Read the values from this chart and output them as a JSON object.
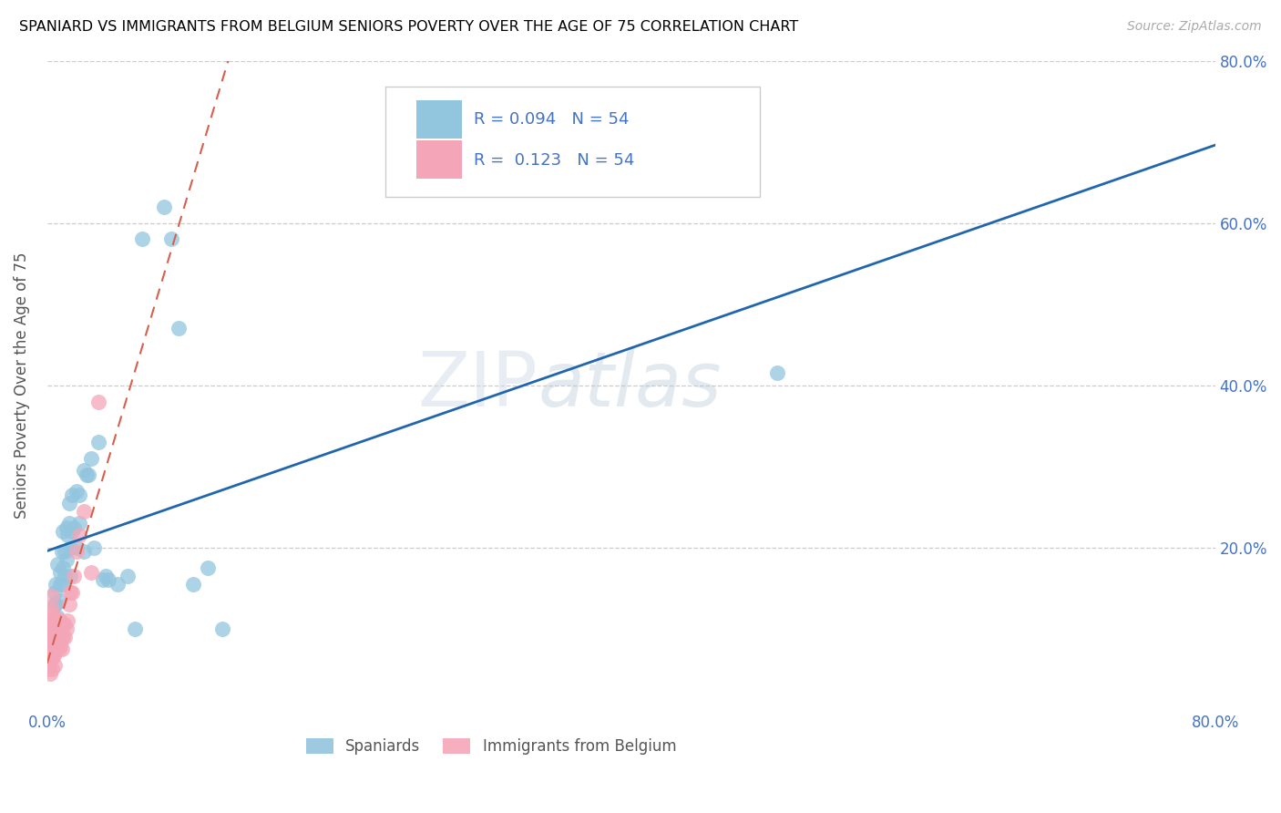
{
  "title": "SPANIARD VS IMMIGRANTS FROM BELGIUM SENIORS POVERTY OVER THE AGE OF 75 CORRELATION CHART",
  "source": "Source: ZipAtlas.com",
  "ylabel": "Seniors Poverty Over the Age of 75",
  "xlim": [
    0,
    0.8
  ],
  "ylim": [
    0,
    0.8
  ],
  "R_blue": 0.094,
  "N_blue": 54,
  "R_pink": 0.123,
  "N_pink": 54,
  "blue_color": "#92c5de",
  "pink_color": "#f4a6b8",
  "trend_blue_color": "#2166ac",
  "trend_pink_color": "#d6604d",
  "watermark_zip": "ZIP",
  "watermark_atlas": "atlas",
  "figsize": [
    14.06,
    8.92
  ],
  "dpi": 100,
  "spaniards_x": [
    0.005,
    0.005,
    0.005,
    0.006,
    0.006,
    0.006,
    0.007,
    0.007,
    0.007,
    0.008,
    0.008,
    0.009,
    0.009,
    0.01,
    0.01,
    0.011,
    0.011,
    0.012,
    0.012,
    0.013,
    0.013,
    0.014,
    0.015,
    0.015,
    0.016,
    0.016,
    0.017,
    0.017,
    0.018,
    0.02,
    0.02,
    0.022,
    0.022,
    0.025,
    0.025,
    0.027,
    0.028,
    0.03,
    0.032,
    0.035,
    0.038,
    0.04,
    0.042,
    0.048,
    0.055,
    0.06,
    0.065,
    0.08,
    0.085,
    0.09,
    0.1,
    0.11,
    0.5,
    0.12
  ],
  "spaniards_y": [
    0.095,
    0.13,
    0.145,
    0.1,
    0.13,
    0.155,
    0.08,
    0.115,
    0.18,
    0.095,
    0.135,
    0.155,
    0.17,
    0.155,
    0.195,
    0.175,
    0.22,
    0.165,
    0.195,
    0.185,
    0.225,
    0.215,
    0.23,
    0.255,
    0.165,
    0.2,
    0.265,
    0.22,
    0.225,
    0.2,
    0.27,
    0.265,
    0.23,
    0.195,
    0.295,
    0.29,
    0.29,
    0.31,
    0.2,
    0.33,
    0.16,
    0.165,
    0.16,
    0.155,
    0.165,
    0.1,
    0.58,
    0.62,
    0.58,
    0.47,
    0.155,
    0.175,
    0.415,
    0.1
  ],
  "belgium_x": [
    0.001,
    0.001,
    0.001,
    0.001,
    0.002,
    0.002,
    0.002,
    0.002,
    0.002,
    0.002,
    0.003,
    0.003,
    0.003,
    0.003,
    0.003,
    0.003,
    0.003,
    0.004,
    0.004,
    0.004,
    0.004,
    0.005,
    0.005,
    0.005,
    0.005,
    0.005,
    0.006,
    0.006,
    0.006,
    0.007,
    0.007,
    0.008,
    0.008,
    0.009,
    0.009,
    0.009,
    0.01,
    0.01,
    0.01,
    0.011,
    0.011,
    0.012,
    0.012,
    0.013,
    0.014,
    0.015,
    0.016,
    0.017,
    0.018,
    0.02,
    0.022,
    0.025,
    0.03,
    0.035
  ],
  "belgium_y": [
    0.05,
    0.065,
    0.08,
    0.095,
    0.045,
    0.06,
    0.075,
    0.09,
    0.105,
    0.12,
    0.05,
    0.065,
    0.08,
    0.095,
    0.11,
    0.125,
    0.14,
    0.065,
    0.08,
    0.095,
    0.11,
    0.055,
    0.07,
    0.085,
    0.1,
    0.115,
    0.08,
    0.095,
    0.11,
    0.095,
    0.11,
    0.075,
    0.09,
    0.08,
    0.095,
    0.11,
    0.075,
    0.09,
    0.105,
    0.09,
    0.105,
    0.09,
    0.105,
    0.1,
    0.11,
    0.13,
    0.145,
    0.145,
    0.165,
    0.195,
    0.215,
    0.245,
    0.17,
    0.38
  ]
}
